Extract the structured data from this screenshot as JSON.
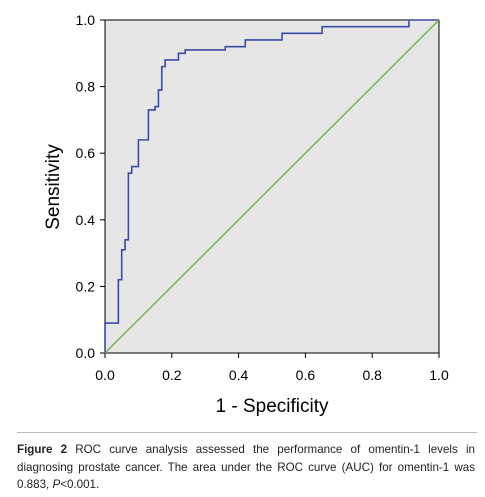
{
  "chart_data": {
    "type": "line",
    "xlabel": "1 - Specificity",
    "ylabel": "Sensitivity",
    "xlim": [
      0.0,
      1.0
    ],
    "ylim": [
      0.0,
      1.0
    ],
    "xticks": [
      "0.0",
      "0.2",
      "0.4",
      "0.6",
      "0.8",
      "1.0"
    ],
    "yticks": [
      "0.0",
      "0.2",
      "0.4",
      "0.6",
      "0.8",
      "1.0"
    ],
    "grid": false,
    "plot_background": "#e6e6e6",
    "series": [
      {
        "color": "#3b4ba6",
        "x": [
          0.0,
          0.0,
          0.04,
          0.04,
          0.05,
          0.05,
          0.06,
          0.06,
          0.07,
          0.07,
          0.08,
          0.08,
          0.1,
          0.1,
          0.13,
          0.13,
          0.15,
          0.15,
          0.16,
          0.16,
          0.17,
          0.17,
          0.18,
          0.18,
          0.22,
          0.22,
          0.24,
          0.24,
          0.36,
          0.36,
          0.42,
          0.42,
          0.53,
          0.53,
          0.65,
          0.65,
          0.91,
          0.91,
          1.0
        ],
        "y": [
          0.0,
          0.09,
          0.09,
          0.22,
          0.22,
          0.31,
          0.31,
          0.34,
          0.34,
          0.54,
          0.54,
          0.56,
          0.56,
          0.64,
          0.64,
          0.73,
          0.73,
          0.74,
          0.74,
          0.79,
          0.79,
          0.86,
          0.86,
          0.88,
          0.88,
          0.9,
          0.9,
          0.91,
          0.91,
          0.92,
          0.92,
          0.94,
          0.94,
          0.96,
          0.96,
          0.98,
          0.98,
          1.0,
          1.0
        ]
      },
      {
        "color": "#6cb24a",
        "x": [
          0.0,
          1.0
        ],
        "y": [
          0.0,
          1.0
        ]
      }
    ]
  },
  "caption": {
    "label": "Figure 2",
    "text_before_p": " ROC curve analysis assessed the performance of omentin-1 levels in diagnosing prostate cancer. The area under the ROC curve (AUC) for omentin-1 was 0.883, ",
    "p_symbol": "P",
    "text_after_p": "<0.001."
  }
}
